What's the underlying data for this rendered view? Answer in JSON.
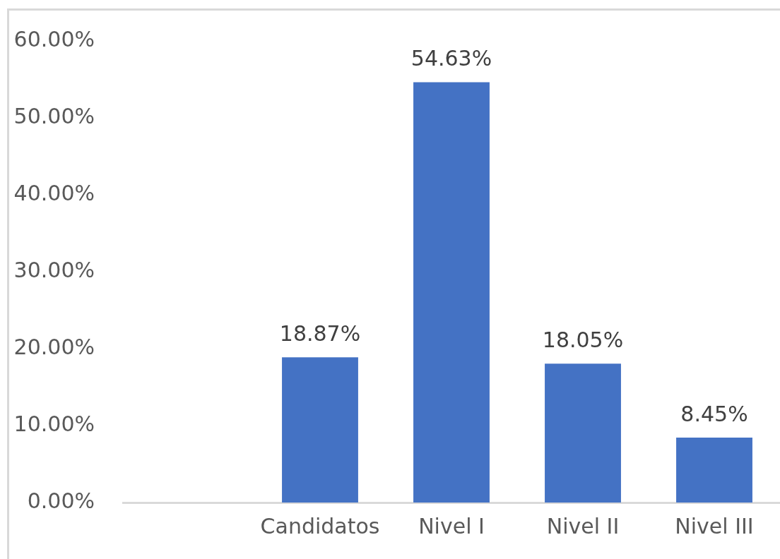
{
  "chart_data": {
    "type": "bar",
    "categories": [
      null,
      "Candidatos",
      "Nivel I",
      "Nivel II",
      "Nivel III"
    ],
    "values": [
      null,
      18.87,
      54.63,
      18.05,
      8.45
    ],
    "value_labels": [
      null,
      "18.87%",
      "54.63%",
      "18.05%",
      "8.45%"
    ],
    "color": "#4472c4",
    "ylim": [
      0,
      60
    ],
    "yticks": [
      {
        "value": 0,
        "label": "0.00%"
      },
      {
        "value": 10,
        "label": "10.00%"
      },
      {
        "value": 20,
        "label": "20.00%"
      },
      {
        "value": 30,
        "label": "30.00%"
      },
      {
        "value": 40,
        "label": "40.00%"
      },
      {
        "value": 50,
        "label": "50.00%"
      },
      {
        "value": 60,
        "label": "60.00%"
      }
    ],
    "grid": false,
    "legend": false
  }
}
